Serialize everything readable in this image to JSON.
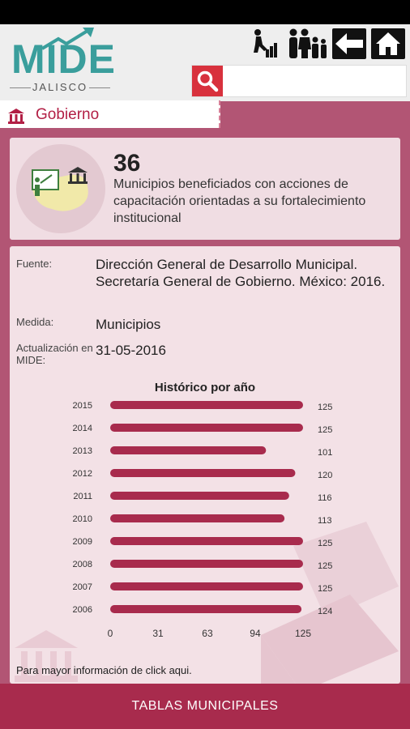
{
  "header": {
    "logo_main": "MIDE",
    "logo_sub": "JALISCO",
    "icons": [
      "progress-person-icon",
      "family-icon",
      "back-arrow-icon",
      "home-icon"
    ],
    "search": {
      "placeholder": ""
    }
  },
  "tab": {
    "label": "Gobierno",
    "icon": "government-building-icon"
  },
  "indicator": {
    "value": "36",
    "description": "Municipios beneficiados con acciones de capacitación orientadas a su fortalecimiento institucional"
  },
  "details": {
    "source_label": "Fuente:",
    "source_value": "Dirección General de Desarrollo Municipal. Secretaría General de Gobierno. México: 2016.",
    "measure_label": "Medida:",
    "measure_value": "Municipios",
    "update_label": "Actualización en MIDE:",
    "update_value": "31-05-2016"
  },
  "chart_data": {
    "type": "bar",
    "orientation": "horizontal",
    "title": "Histórico por año",
    "categories": [
      "2015",
      "2014",
      "2013",
      "2012",
      "2011",
      "2010",
      "2009",
      "2008",
      "2007",
      "2006"
    ],
    "values": [
      125,
      125,
      101,
      120,
      116,
      113,
      125,
      125,
      125,
      124
    ],
    "xticks": [
      "0",
      "31",
      "63",
      "94",
      "125"
    ],
    "xlim": [
      0,
      125
    ],
    "bar_color": "#a82b4d"
  },
  "footer_link": "Para mayor información de click aqui.",
  "bottom_button": "TABLAS MUNICIPALES",
  "colors": {
    "accent": "#a82b4d",
    "background": "#b25574",
    "card": "#f0dde3"
  }
}
